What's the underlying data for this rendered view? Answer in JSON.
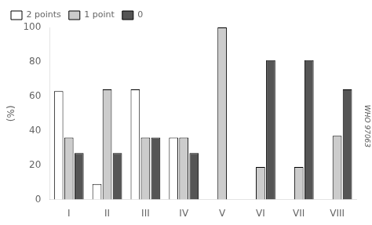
{
  "chart_data": {
    "type": "bar",
    "categories": [
      "I",
      "II",
      "III",
      "IV",
      "V",
      "VI",
      "VII",
      "VIII"
    ],
    "series": [
      {
        "name": "2 points",
        "color": "#ffffff",
        "values": [
          63,
          9,
          64,
          36,
          0,
          0,
          0,
          0
        ]
      },
      {
        "name": "1 point",
        "color": "#cccccc",
        "values": [
          36,
          64,
          36,
          36,
          100,
          19,
          19,
          37
        ]
      },
      {
        "name": "0",
        "color": "#555555",
        "values": [
          27,
          27,
          36,
          27,
          0,
          81,
          81,
          64
        ]
      }
    ],
    "ylabel": "(%)",
    "ylim": [
      0,
      100
    ],
    "yticks": [
      0,
      20,
      40,
      60,
      80,
      100
    ],
    "grid": false,
    "legend": "upper left",
    "annotations": [
      "WHO 97063"
    ]
  }
}
